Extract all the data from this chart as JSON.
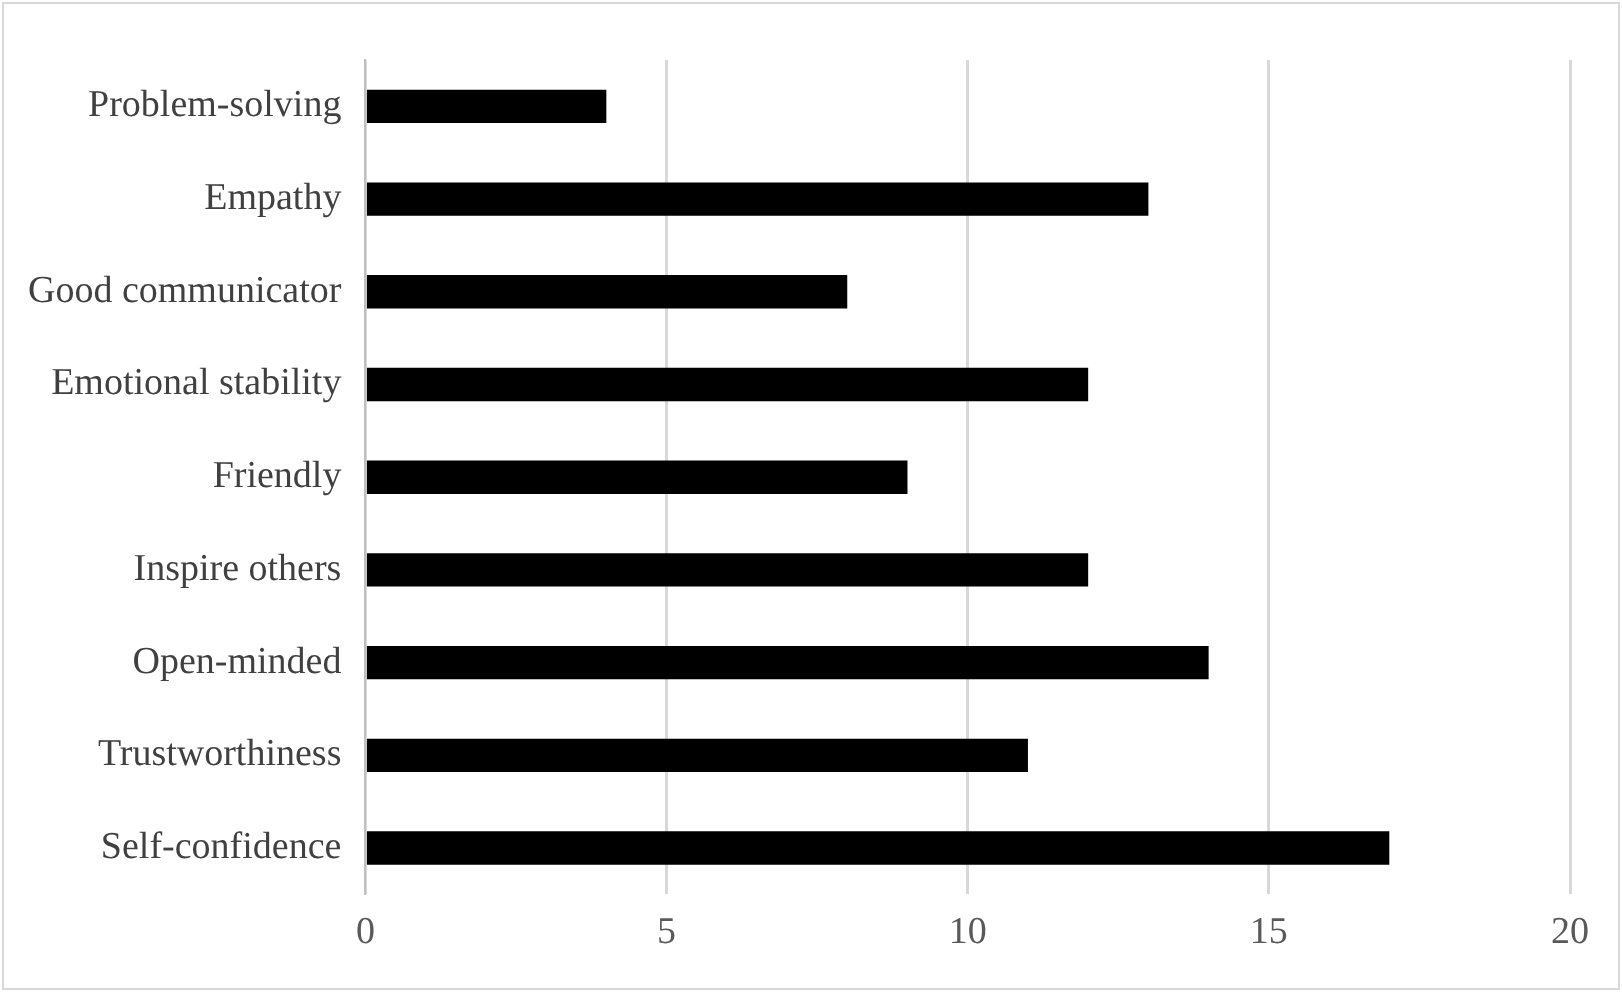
{
  "chart_data": {
    "type": "bar",
    "orientation": "horizontal",
    "categories": [
      "Problem-solving",
      "Empathy",
      "Good communicator",
      "Emotional stability",
      "Friendly",
      "Inspire others",
      "Open-minded",
      "Trustworthiness",
      "Self-confidence"
    ],
    "values": [
      4,
      13,
      8,
      12,
      9,
      12,
      14,
      11,
      17
    ],
    "color": "#000000",
    "xlim": [
      0,
      20
    ],
    "xticks": [
      0,
      5,
      10,
      15,
      20
    ],
    "grid": "x",
    "legend": false
  }
}
